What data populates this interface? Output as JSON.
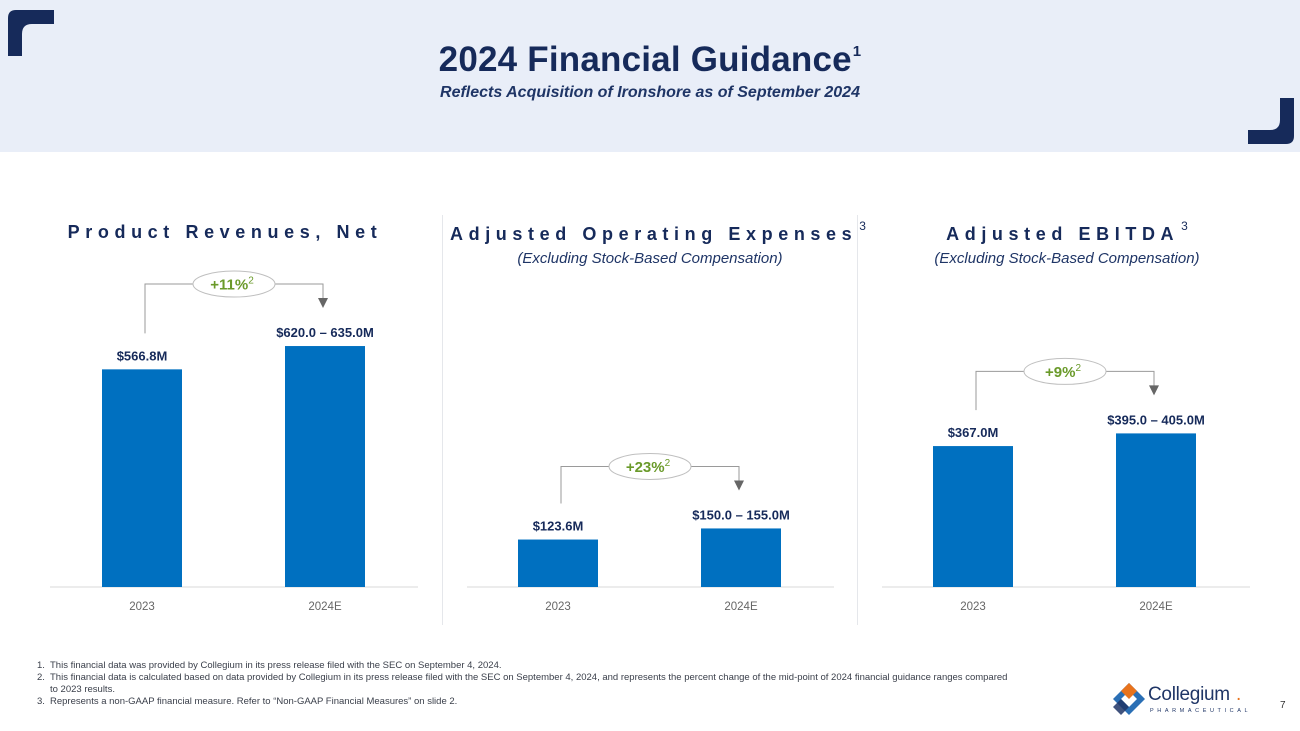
{
  "header": {
    "title": "2024 Financial Guidance",
    "title_sup": "1",
    "subtitle": "Reflects Acquisition of Ironshore as of September 2024"
  },
  "colors": {
    "bar": "#0070c0",
    "title_navy": "#162a5a",
    "growth_green": "#6a9a2a",
    "header_band": "#e9eef8"
  },
  "chart_data": [
    {
      "type": "bar",
      "title": "Product Revenues, Net",
      "title_sup": "",
      "subtitle": "",
      "categories": [
        "2023",
        "2024E"
      ],
      "values": [
        566.8,
        627.5
      ],
      "range_2024E": [
        620.0,
        635.0
      ],
      "data_labels": [
        "$566.8M",
        "$620.0 – 635.0M"
      ],
      "growth_label": "+11%",
      "growth_sup": "2",
      "ylim": [
        0,
        720
      ],
      "unit": "$M"
    },
    {
      "type": "bar",
      "title": "Adjusted Operating Expenses",
      "title_sup": "3",
      "subtitle": "(Excluding Stock-Based Compensation)",
      "categories": [
        "2023",
        "2024E"
      ],
      "values": [
        123.6,
        152.5
      ],
      "range_2024E": [
        150.0,
        155.0
      ],
      "data_labels": [
        "$123.6M",
        "$150.0 – 155.0M"
      ],
      "growth_label": "+23%",
      "growth_sup": "2",
      "ylim": [
        0,
        720
      ],
      "unit": "$M"
    },
    {
      "type": "bar",
      "title": "Adjusted EBITDA",
      "title_sup": "3",
      "subtitle": "(Excluding Stock-Based Compensation)",
      "categories": [
        "2023",
        "2024E"
      ],
      "values": [
        367.0,
        400.0
      ],
      "range_2024E": [
        395.0,
        405.0
      ],
      "data_labels": [
        "$367.0M",
        "$395.0 – 405.0M"
      ],
      "growth_label": "+9%",
      "growth_sup": "2",
      "ylim": [
        0,
        720
      ],
      "unit": "$M"
    }
  ],
  "footnotes": [
    {
      "num": "1.",
      "text": "This financial data was provided by Collegium in its press release filed with the SEC on September 4, 2024."
    },
    {
      "num": "2.",
      "text": "This financial data is calculated based on data provided by Collegium in its press release filed with the SEC on September 4, 2024, and represents the percent change of the mid-point of 2024 financial guidance ranges compared to 2023 results."
    },
    {
      "num": "3.",
      "text": "Represents a non-GAAP financial measure. Refer to “Non-GAAP Financial Measures” on slide 2."
    }
  ],
  "logo": {
    "name": "Collegium",
    "mark": ".",
    "sub": "PHARMACEUTICAL"
  },
  "page_number": "7",
  "icons": {
    "corner_top_left": "corner-bracket-icon",
    "corner_bottom_right": "corner-bracket-icon",
    "arrow": "down-arrow-icon"
  }
}
